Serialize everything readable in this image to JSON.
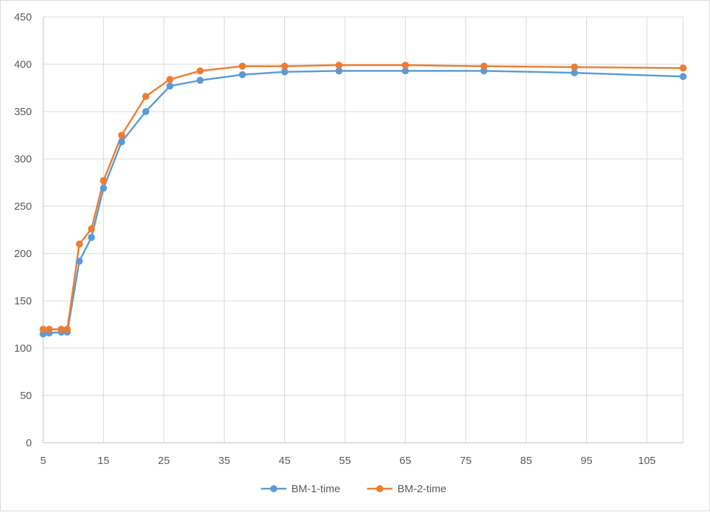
{
  "chart_data": {
    "type": "line",
    "title": "",
    "xlabel": "",
    "ylabel": "",
    "xlim": [
      5,
      111
    ],
    "ylim": [
      0,
      450
    ],
    "x_ticks": [
      5,
      15,
      25,
      35,
      45,
      55,
      65,
      75,
      85,
      95,
      105
    ],
    "y_ticks": [
      0,
      50,
      100,
      150,
      200,
      250,
      300,
      350,
      400,
      450
    ],
    "grid": true,
    "legend_position": "bottom",
    "series": [
      {
        "name": "BM-1-time",
        "color": "#5b9bd5",
        "marker": "circle",
        "x": [
          5,
          6,
          8,
          9,
          11,
          13,
          15,
          18,
          22,
          26,
          31,
          38,
          45,
          54,
          65,
          78,
          93,
          111
        ],
        "y": [
          115,
          116,
          117,
          117,
          192,
          217,
          269,
          318,
          350,
          377,
          383,
          389,
          392,
          393,
          393,
          393,
          391,
          387
        ]
      },
      {
        "name": "BM-2-time",
        "color": "#ed7d31",
        "marker": "circle",
        "x": [
          5,
          6,
          8,
          9,
          11,
          13,
          15,
          18,
          22,
          26,
          31,
          38,
          45,
          54,
          65,
          78,
          93,
          111
        ],
        "y": [
          120,
          120,
          120,
          120,
          210,
          226,
          277,
          325,
          366,
          384,
          393,
          398,
          398,
          399,
          399,
          398,
          397,
          396
        ]
      }
    ]
  }
}
